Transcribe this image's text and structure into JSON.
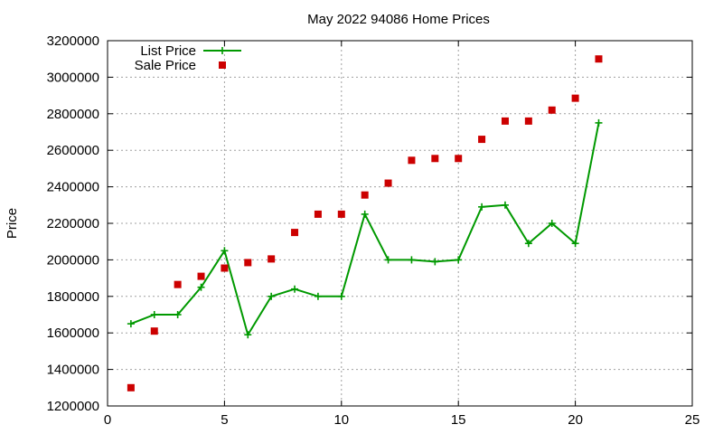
{
  "chart_data": {
    "type": "scatter",
    "title": "May 2022 94086 Home Prices",
    "xlabel": "",
    "ylabel": "Price",
    "xlim": [
      0,
      25
    ],
    "ylim": [
      1200000,
      3200000
    ],
    "x_ticks": [
      0,
      5,
      10,
      15,
      20,
      25
    ],
    "y_ticks": [
      1200000,
      1400000,
      1600000,
      1800000,
      2000000,
      2200000,
      2400000,
      2600000,
      2800000,
      3000000,
      3200000
    ],
    "x_tick_labels": [
      "0",
      "5",
      "10",
      "15",
      "20",
      "25"
    ],
    "y_tick_labels": [
      "1200000",
      "1400000",
      "1600000",
      "1800000",
      "2000000",
      "2200000",
      "2400000",
      "2600000",
      "2800000",
      "3000000",
      "3200000"
    ],
    "grid": true,
    "legend_position": "top-left",
    "series": [
      {
        "name": "List Price",
        "style": "line-points",
        "marker": "plus",
        "color": "#009900",
        "x": [
          1,
          2,
          3,
          4,
          5,
          6,
          7,
          8,
          9,
          10,
          11,
          12,
          13,
          14,
          15,
          16,
          17,
          18,
          19,
          20,
          21
        ],
        "y": [
          1650000,
          1700000,
          1700000,
          1850000,
          2050000,
          1590000,
          1800000,
          1840000,
          1800000,
          1800000,
          2250000,
          2000000,
          2000000,
          1990000,
          2000000,
          2290000,
          2300000,
          2090000,
          2200000,
          2090000,
          2750000
        ]
      },
      {
        "name": "Sale Price",
        "style": "points",
        "marker": "square",
        "color": "#cc0000",
        "x": [
          1,
          2,
          3,
          4,
          5,
          6,
          7,
          8,
          9,
          10,
          11,
          12,
          13,
          14,
          15,
          16,
          17,
          18,
          19,
          20,
          21
        ],
        "y": [
          1300000,
          1610000,
          1865000,
          1910000,
          1955000,
          1985000,
          2005000,
          2150000,
          2250000,
          2250000,
          2355000,
          2420000,
          2545000,
          2555000,
          2555000,
          2660000,
          2760000,
          2760000,
          2820000,
          2885000,
          3100000
        ]
      }
    ]
  }
}
